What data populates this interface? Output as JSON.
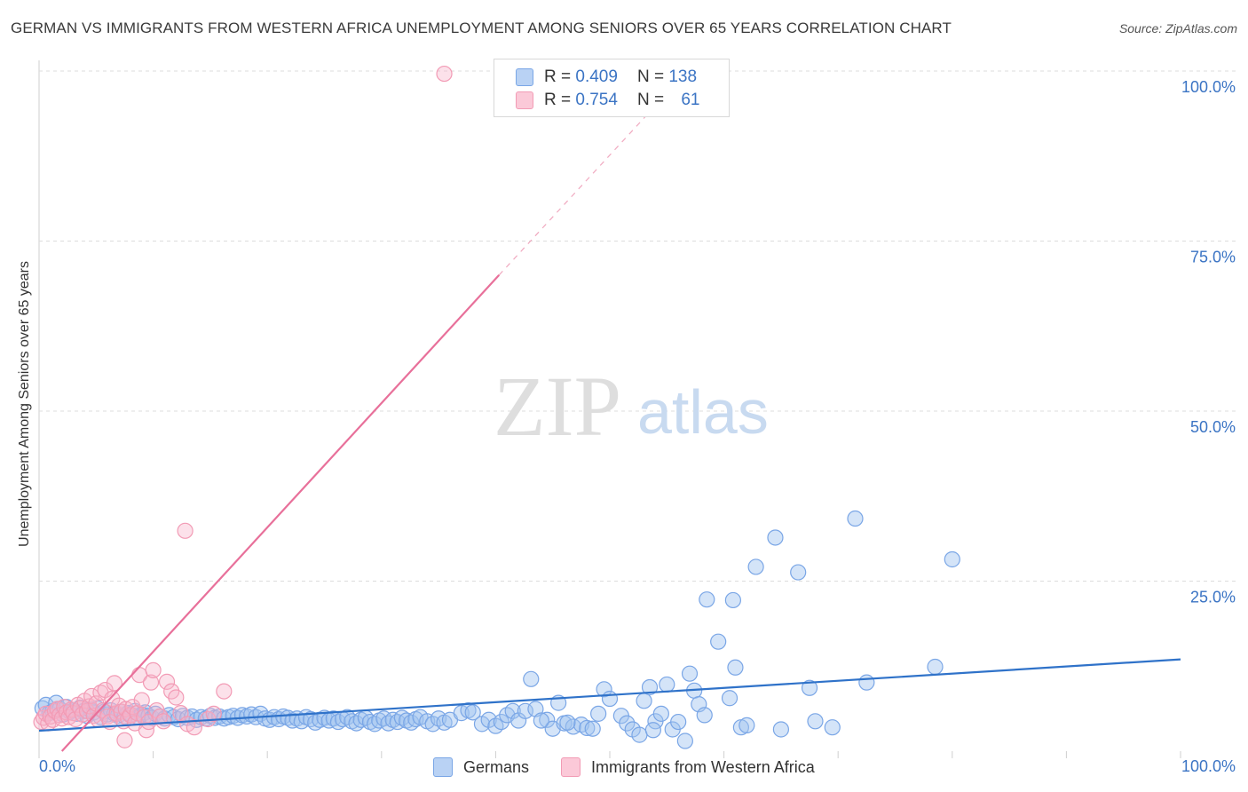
{
  "title": "GERMAN VS IMMIGRANTS FROM WESTERN AFRICA UNEMPLOYMENT AMONG SENIORS OVER 65 YEARS CORRELATION CHART",
  "source": "Source: ZipAtlas.com",
  "watermark": {
    "zip": "ZIP",
    "atlas": "atlas"
  },
  "legend_stats": [
    {
      "r_label": "R =",
      "r_value": "0.409",
      "n_label": "N =",
      "n_value": "138"
    },
    {
      "r_label": "R =",
      "r_value": "0.754",
      "n_label": "N =",
      "n_value": "61"
    }
  ],
  "chart_data": {
    "type": "scatter",
    "title": "GERMAN VS IMMIGRANTS FROM WESTERN AFRICA UNEMPLOYMENT AMONG SENIORS OVER 65 YEARS CORRELATION CHART",
    "xlabel": "",
    "ylabel": "Unemployment Among Seniors over 65 years",
    "xlim": [
      0,
      100
    ],
    "ylim": [
      0,
      100
    ],
    "x_tick_labels": [
      "0.0%",
      "100.0%"
    ],
    "y_tick_labels": [
      "100.0%",
      "75.0%",
      "50.0%",
      "25.0%"
    ],
    "y_tick_values": [
      100,
      75,
      50,
      25
    ],
    "colors": {
      "germans": "#7aa6e6",
      "germans_line": "#2f72c9",
      "immigrants": "#f29bb5",
      "immigrants_line": "#e8709a",
      "tick_text": "#3b74c4"
    },
    "series": [
      {
        "name": "Germans",
        "R": 0.409,
        "N": 138,
        "trend": {
          "x0": 0,
          "y0": 3.0,
          "x1": 100,
          "y1": 13.5
        },
        "points": [
          [
            0.3,
            6.3
          ],
          [
            0.6,
            6.8
          ],
          [
            0.9,
            5.6
          ],
          [
            1.2,
            5.9
          ],
          [
            1.5,
            7.1
          ],
          [
            1.8,
            6.2
          ],
          [
            2.1,
            5.4
          ],
          [
            2.4,
            6.5
          ],
          [
            2.7,
            5.8
          ],
          [
            3.0,
            6.0
          ],
          [
            3.3,
            5.5
          ],
          [
            3.6,
            6.4
          ],
          [
            3.9,
            5.9
          ],
          [
            4.2,
            5.2
          ],
          [
            4.5,
            6.1
          ],
          [
            4.8,
            5.7
          ],
          [
            5.1,
            6.3
          ],
          [
            5.4,
            5.0
          ],
          [
            5.7,
            5.8
          ],
          [
            6.0,
            5.4
          ],
          [
            6.3,
            6.0
          ],
          [
            6.6,
            5.5
          ],
          [
            6.9,
            5.2
          ],
          [
            7.2,
            5.8
          ],
          [
            7.5,
            5.1
          ],
          [
            7.8,
            5.6
          ],
          [
            8.1,
            5.3
          ],
          [
            8.4,
            5.9
          ],
          [
            8.7,
            5.0
          ],
          [
            9.0,
            5.4
          ],
          [
            9.3,
            5.7
          ],
          [
            9.6,
            5.2
          ],
          [
            9.9,
            4.9
          ],
          [
            10.2,
            5.5
          ],
          [
            10.6,
            5.1
          ],
          [
            11.0,
            4.8
          ],
          [
            11.4,
            5.3
          ],
          [
            11.8,
            5.0
          ],
          [
            12.2,
            4.7
          ],
          [
            12.6,
            5.2
          ],
          [
            13.0,
            4.9
          ],
          [
            13.4,
            5.1
          ],
          [
            13.8,
            4.6
          ],
          [
            14.2,
            5.0
          ],
          [
            14.6,
            4.8
          ],
          [
            15.0,
            5.2
          ],
          [
            15.4,
            4.9
          ],
          [
            15.8,
            5.1
          ],
          [
            16.2,
            4.8
          ],
          [
            16.6,
            5.0
          ],
          [
            17.0,
            5.2
          ],
          [
            17.4,
            4.9
          ],
          [
            17.8,
            5.3
          ],
          [
            18.2,
            5.1
          ],
          [
            18.6,
            5.4
          ],
          [
            19.0,
            5.0
          ],
          [
            19.4,
            5.5
          ],
          [
            19.8,
            4.8
          ],
          [
            20.2,
            4.6
          ],
          [
            20.6,
            5.0
          ],
          [
            21.0,
            4.7
          ],
          [
            21.4,
            5.1
          ],
          [
            21.8,
            4.9
          ],
          [
            22.2,
            4.5
          ],
          [
            22.6,
            4.8
          ],
          [
            23.0,
            4.4
          ],
          [
            23.4,
            5.0
          ],
          [
            23.8,
            4.7
          ],
          [
            24.2,
            4.2
          ],
          [
            24.6,
            4.6
          ],
          [
            25.0,
            4.9
          ],
          [
            25.4,
            4.5
          ],
          [
            25.8,
            4.8
          ],
          [
            26.2,
            4.3
          ],
          [
            26.6,
            4.7
          ],
          [
            27.0,
            5.0
          ],
          [
            27.4,
            4.4
          ],
          [
            27.8,
            4.1
          ],
          [
            28.2,
            4.6
          ],
          [
            28.6,
            4.9
          ],
          [
            29.0,
            4.3
          ],
          [
            29.4,
            4.0
          ],
          [
            29.8,
            4.5
          ],
          [
            30.2,
            4.8
          ],
          [
            30.6,
            4.1
          ],
          [
            31.0,
            4.6
          ],
          [
            31.4,
            4.3
          ],
          [
            31.8,
            4.9
          ],
          [
            32.2,
            4.5
          ],
          [
            32.6,
            4.2
          ],
          [
            33.0,
            4.7
          ],
          [
            33.4,
            5.0
          ],
          [
            34.0,
            4.4
          ],
          [
            34.5,
            4.0
          ],
          [
            35.0,
            4.8
          ],
          [
            35.5,
            4.2
          ],
          [
            36.0,
            4.6
          ],
          [
            37.0,
            5.6
          ],
          [
            37.6,
            6.0
          ],
          [
            38.0,
            5.7
          ],
          [
            38.8,
            4.0
          ],
          [
            39.4,
            4.6
          ],
          [
            40.0,
            3.7
          ],
          [
            40.5,
            4.3
          ],
          [
            41.0,
            5.3
          ],
          [
            41.5,
            5.9
          ],
          [
            42.0,
            4.5
          ],
          [
            42.6,
            5.9
          ],
          [
            43.1,
            10.6
          ],
          [
            43.5,
            6.2
          ],
          [
            44.5,
            4.6
          ],
          [
            45.0,
            3.3
          ],
          [
            45.5,
            7.1
          ],
          [
            46.0,
            4.1
          ],
          [
            46.8,
            3.6
          ],
          [
            47.5,
            3.9
          ],
          [
            48.0,
            3.4
          ],
          [
            48.5,
            3.3
          ],
          [
            49.0,
            5.5
          ],
          [
            49.5,
            9.1
          ],
          [
            50.0,
            7.7
          ],
          [
            51.0,
            5.2
          ],
          [
            51.5,
            4.1
          ],
          [
            52.0,
            3.2
          ],
          [
            52.6,
            2.4
          ],
          [
            53.0,
            7.4
          ],
          [
            53.5,
            9.4
          ],
          [
            54.0,
            4.4
          ],
          [
            54.5,
            5.5
          ],
          [
            55.0,
            9.8
          ],
          [
            55.5,
            3.2
          ],
          [
            56.0,
            4.3
          ],
          [
            56.6,
            1.5
          ],
          [
            57.0,
            11.4
          ],
          [
            57.4,
            8.9
          ],
          [
            57.8,
            6.9
          ],
          [
            58.3,
            5.3
          ],
          [
            59.5,
            16.1
          ],
          [
            60.5,
            7.8
          ],
          [
            61.0,
            12.3
          ],
          [
            61.5,
            3.5
          ],
          [
            62.0,
            3.8
          ],
          [
            62.8,
            27.1
          ],
          [
            64.5,
            31.4
          ],
          [
            65.0,
            3.2
          ],
          [
            66.5,
            26.3
          ],
          [
            67.5,
            9.3
          ],
          [
            68.0,
            4.4
          ],
          [
            69.5,
            3.5
          ],
          [
            72.5,
            10.1
          ],
          [
            78.5,
            12.4
          ],
          [
            80.0,
            28.2
          ],
          [
            58.5,
            22.3
          ],
          [
            60.8,
            22.2
          ],
          [
            71.5,
            34.2
          ],
          [
            44.0,
            4.5
          ],
          [
            46.3,
            4.2
          ],
          [
            53.8,
            3.1
          ]
        ]
      },
      {
        "name": "Immigrants from Western Africa",
        "R": 0.754,
        "N": 61,
        "trend": {
          "x0": 2.0,
          "y0": 0.0,
          "x1": 40.3,
          "y1": 70.0,
          "dashed_to": {
            "x": 53.5,
            "y": 94.0
          }
        },
        "points": [
          [
            0.2,
            4.3
          ],
          [
            0.4,
            4.9
          ],
          [
            0.6,
            5.5
          ],
          [
            0.8,
            4.1
          ],
          [
            1.0,
            5.1
          ],
          [
            1.2,
            4.6
          ],
          [
            1.4,
            5.9
          ],
          [
            1.6,
            6.2
          ],
          [
            1.8,
            5.3
          ],
          [
            2.0,
            4.8
          ],
          [
            2.2,
            6.5
          ],
          [
            2.4,
            5.7
          ],
          [
            2.6,
            5.0
          ],
          [
            2.8,
            6.1
          ],
          [
            3.0,
            5.6
          ],
          [
            3.2,
            4.7
          ],
          [
            3.4,
            6.8
          ],
          [
            3.6,
            6.3
          ],
          [
            3.8,
            5.4
          ],
          [
            4.0,
            7.4
          ],
          [
            4.2,
            5.9
          ],
          [
            4.4,
            6.6
          ],
          [
            4.6,
            8.1
          ],
          [
            4.8,
            5.2
          ],
          [
            5.0,
            7.0
          ],
          [
            5.2,
            4.6
          ],
          [
            5.4,
            8.6
          ],
          [
            5.6,
            6.0
          ],
          [
            5.8,
            9.0
          ],
          [
            6.0,
            5.1
          ],
          [
            6.2,
            4.3
          ],
          [
            6.4,
            7.7
          ],
          [
            6.6,
            10.0
          ],
          [
            6.8,
            5.5
          ],
          [
            7.0,
            6.7
          ],
          [
            7.2,
            5.8
          ],
          [
            7.4,
            4.4
          ],
          [
            7.6,
            6.2
          ],
          [
            7.8,
            4.8
          ],
          [
            8.0,
            5.3
          ],
          [
            8.2,
            6.5
          ],
          [
            8.4,
            4.1
          ],
          [
            8.6,
            5.6
          ],
          [
            8.8,
            11.2
          ],
          [
            9.0,
            7.5
          ],
          [
            9.2,
            5.0
          ],
          [
            9.4,
            3.1
          ],
          [
            9.6,
            4.3
          ],
          [
            9.8,
            10.1
          ],
          [
            10.0,
            11.9
          ],
          [
            10.3,
            6.0
          ],
          [
            10.6,
            5.1
          ],
          [
            10.9,
            4.4
          ],
          [
            11.2,
            10.2
          ],
          [
            11.6,
            8.8
          ],
          [
            12.0,
            7.9
          ],
          [
            12.4,
            5.6
          ],
          [
            13.0,
            4.0
          ],
          [
            13.6,
            3.5
          ],
          [
            14.8,
            4.7
          ],
          [
            15.3,
            5.5
          ],
          [
            16.2,
            8.8
          ],
          [
            12.8,
            32.4
          ],
          [
            7.5,
            1.6
          ],
          [
            35.5,
            99.6
          ]
        ]
      }
    ]
  },
  "bottom_legend": [
    {
      "label": "Germans"
    },
    {
      "label": "Immigrants from Western Africa"
    }
  ]
}
